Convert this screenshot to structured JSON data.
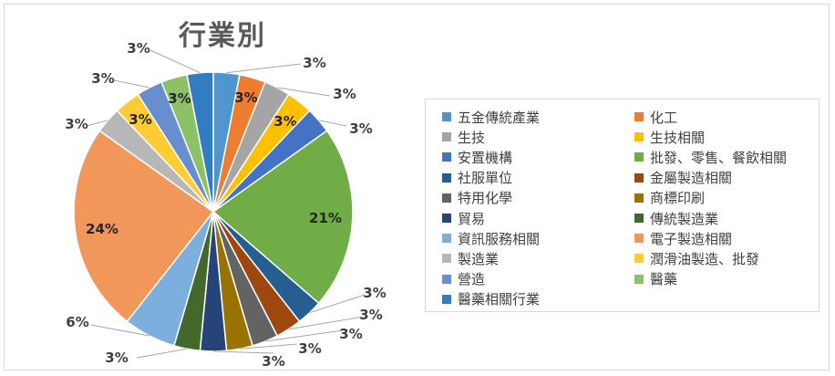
{
  "chart_data": {
    "type": "pie",
    "title": "行業別",
    "legend_position": "right",
    "series": [
      {
        "name": "五金傳統產業",
        "value": 3,
        "label": "3%",
        "color": "#4f95d0"
      },
      {
        "name": "化工",
        "value": 3,
        "label": "3%",
        "color": "#ed7d31"
      },
      {
        "name": "生技",
        "value": 3,
        "label": "3%",
        "color": "#a5a5a5"
      },
      {
        "name": "生技相關",
        "value": 3,
        "label": "3%",
        "color": "#ffc000"
      },
      {
        "name": "安置機構",
        "value": 3,
        "label": "3%",
        "color": "#4472c4"
      },
      {
        "name": "批發、零售、餐飲相關",
        "value": 21,
        "label": "21%",
        "color": "#70ad47"
      },
      {
        "name": "社服單位",
        "value": 3,
        "label": "3%",
        "color": "#255e91"
      },
      {
        "name": "金屬製造相關",
        "value": 3,
        "label": "3%",
        "color": "#9e480e"
      },
      {
        "name": "特用化學",
        "value": 3,
        "label": "3%",
        "color": "#636363"
      },
      {
        "name": "商標印刷",
        "value": 3,
        "label": "3%",
        "color": "#997300"
      },
      {
        "name": "貿易",
        "value": 3,
        "label": "3%",
        "color": "#264478"
      },
      {
        "name": "傳統製造業",
        "value": 3,
        "label": "3%",
        "color": "#43682b"
      },
      {
        "name": "資訊服務相關",
        "value": 6,
        "label": "6%",
        "color": "#7cafdd"
      },
      {
        "name": "電子製造相關",
        "value": 24,
        "label": "24%",
        "color": "#f1975a"
      },
      {
        "name": "製造業",
        "value": 3,
        "label": "3%",
        "color": "#b7b7b7"
      },
      {
        "name": "潤滑油製造、批發",
        "value": 3,
        "label": "3%",
        "color": "#ffcd33"
      },
      {
        "name": "營造",
        "value": 3,
        "label": "3%",
        "color": "#698ed0"
      },
      {
        "name": "醫藥",
        "value": 3,
        "label": "3%",
        "color": "#8cc168"
      },
      {
        "name": "醫藥相關行業",
        "value": 3,
        "label": "3%",
        "color": "#327dc2"
      }
    ]
  }
}
